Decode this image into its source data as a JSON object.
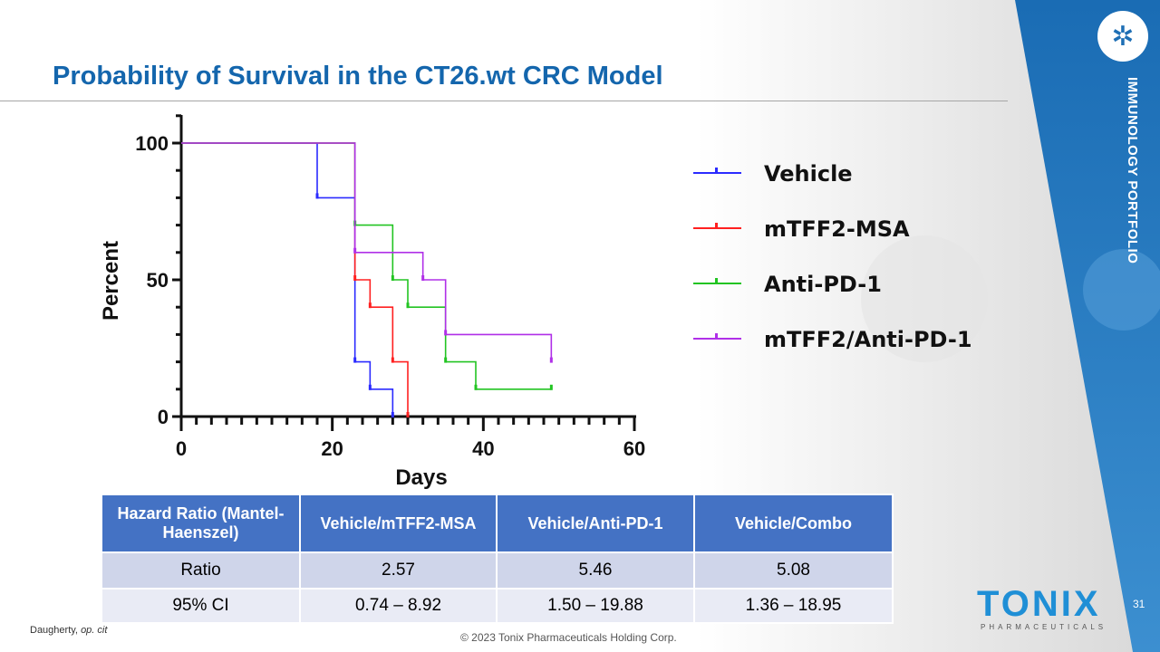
{
  "title": "Probability of Survival in the CT26.wt CRC Model",
  "side_label": "IMMUNOLOGY PORTFOLIO",
  "colors": {
    "brand_blue": "#1466ad",
    "band_blue": "#1b6db5",
    "table_header": "#4472c4"
  },
  "chart_data": {
    "type": "line",
    "subtype": "kaplan-meier-step",
    "xlabel": "Days",
    "ylabel": "Percent",
    "xlim": [
      0,
      60
    ],
    "ylim": [
      0,
      100
    ],
    "xticks": [
      0,
      20,
      40,
      60
    ],
    "yticks": [
      0,
      50,
      100
    ],
    "grid": false,
    "legend_position": "right",
    "series": [
      {
        "name": "Vehicle",
        "color": "#2b2bff",
        "steps": [
          [
            0,
            100
          ],
          [
            18,
            80
          ],
          [
            23,
            20
          ],
          [
            25,
            10
          ],
          [
            28,
            0
          ]
        ]
      },
      {
        "name": "mTFF2-MSA",
        "color": "#ff2020",
        "steps": [
          [
            0,
            100
          ],
          [
            23,
            50
          ],
          [
            25,
            40
          ],
          [
            28,
            20
          ],
          [
            30,
            0
          ]
        ]
      },
      {
        "name": "Anti-PD-1",
        "color": "#22c422",
        "steps": [
          [
            0,
            100
          ],
          [
            23,
            70
          ],
          [
            28,
            50
          ],
          [
            30,
            40
          ],
          [
            35,
            20
          ],
          [
            39,
            10
          ],
          [
            49,
            10
          ]
        ]
      },
      {
        "name": "mTFF2/Anti-PD-1",
        "color": "#b030e8",
        "steps": [
          [
            0,
            100
          ],
          [
            23,
            60
          ],
          [
            32,
            50
          ],
          [
            35,
            30
          ],
          [
            49,
            20
          ]
        ]
      }
    ]
  },
  "table": {
    "headers": [
      "Hazard Ratio (Mantel-Haenszel)",
      "Vehicle/mTFF2-MSA",
      "Vehicle/Anti-PD-1",
      "Vehicle/Combo"
    ],
    "rows": [
      [
        "Ratio",
        "2.57",
        "5.46",
        "5.08"
      ],
      [
        "95% CI",
        "0.74 – 8.92",
        "1.50 – 19.88",
        "1.36 – 18.95"
      ]
    ]
  },
  "citation": {
    "author": "Daugherty, ",
    "ref": "op. cit"
  },
  "copyright": "© 2023 Tonix Pharmaceuticals Holding Corp.",
  "page_number": "31",
  "logo": {
    "name": "TONIX",
    "sub": "PHARMACEUTICALS"
  }
}
